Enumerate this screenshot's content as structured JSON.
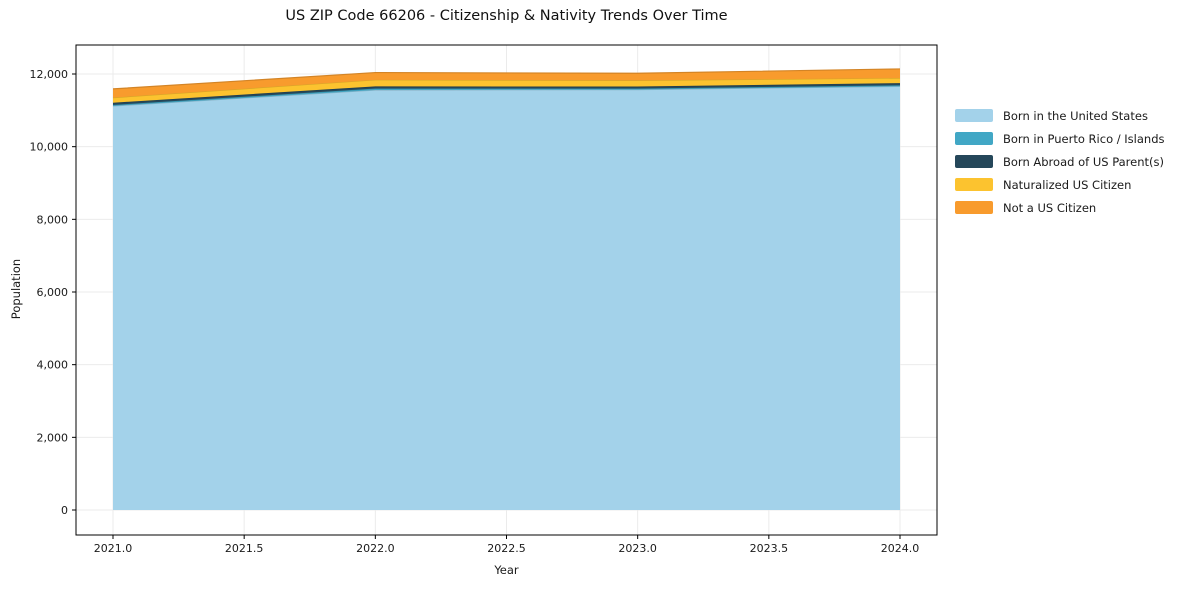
{
  "title": "US ZIP Code 66206 - Citizenship & Nativity Trends Over Time",
  "chart_data": {
    "type": "area",
    "stacked": true,
    "title": "US ZIP Code 66206 - Citizenship & Nativity Trends Over Time",
    "xlabel": "Year",
    "ylabel": "Population",
    "x": [
      2021,
      2022,
      2023,
      2024
    ],
    "series": [
      {
        "name": "Born in the United States",
        "color": "#A3D2EA",
        "values": [
          11120,
          11560,
          11570,
          11660
        ]
      },
      {
        "name": "Born in Puerto Rico / Islands",
        "color": "#41A7C5",
        "values": [
          30,
          40,
          30,
          30
        ]
      },
      {
        "name": "Born Abroad of US Parent(s)",
        "color": "#25475A",
        "values": [
          60,
          60,
          55,
          60
        ]
      },
      {
        "name": "Naturalized US Citizen",
        "color": "#FCC32F",
        "values": [
          140,
          180,
          170,
          140
        ]
      },
      {
        "name": "Not a US Citizen",
        "color": "#F89B2D",
        "values": [
          240,
          200,
          195,
          250
        ]
      }
    ],
    "xlim": [
      2020.86,
      2024.14
    ],
    "ylim": [
      -690,
      12800
    ],
    "xticks": {
      "values": [
        2021.0,
        2021.5,
        2022.0,
        2022.5,
        2023.0,
        2023.5,
        2024.0
      ],
      "labels": [
        "2021.0",
        "2021.5",
        "2022.0",
        "2022.5",
        "2023.0",
        "2023.5",
        "2024.0"
      ]
    },
    "yticks": {
      "values": [
        0,
        2000,
        4000,
        6000,
        8000,
        10000,
        12000
      ],
      "labels": [
        "0",
        "2,000",
        "4,000",
        "6,000",
        "8,000",
        "10,000",
        "12,000"
      ]
    },
    "grid": true,
    "legend_position": "outside-right"
  },
  "colors": {
    "background": "#ffffff",
    "grid": "#ebebeb",
    "spine": "#000000",
    "tick": "#000000",
    "text": "#1a1a1a"
  }
}
